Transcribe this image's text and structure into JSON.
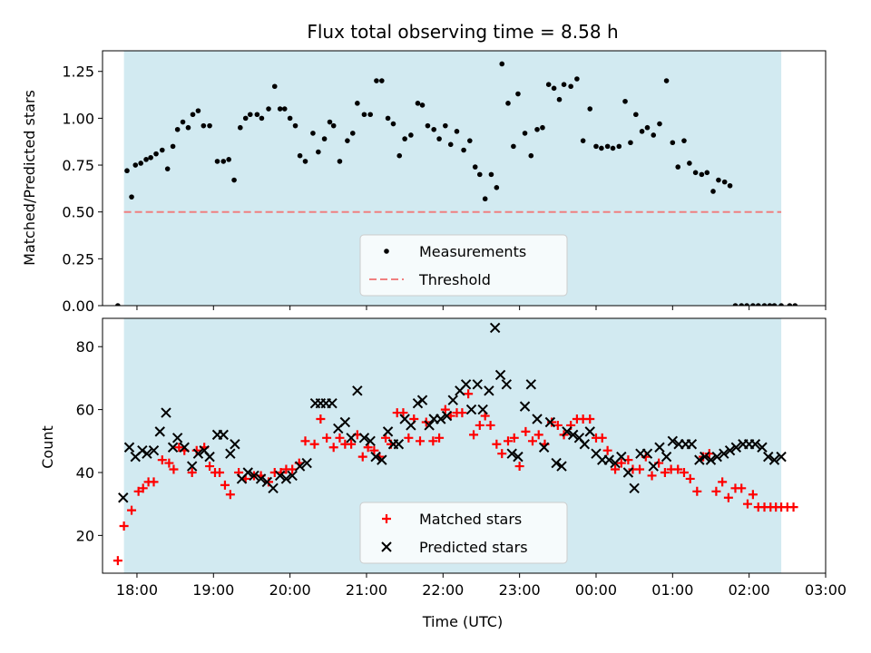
{
  "chart_data": [
    {
      "type": "scatter",
      "title": "Flux total observing time = 8.58 h",
      "ylabel": "Matched/Predicted stars",
      "xlabel": "",
      "x_range_hours": [
        17.55,
        27.0
      ],
      "ylim": [
        0.0,
        1.36
      ],
      "yticks": [
        "0.00",
        "0.25",
        "0.50",
        "0.75",
        "1.00",
        "1.25"
      ],
      "yticks_values": [
        0.0,
        0.25,
        0.5,
        0.75,
        1.0,
        1.25
      ],
      "shaded_span_hours": [
        17.83,
        26.42
      ],
      "shade_color": "#add8e6",
      "legend": {
        "placement": "lower-center",
        "entries": [
          "Measurements",
          "Threshold"
        ]
      },
      "threshold": {
        "name": "Threshold",
        "value": 0.5,
        "x_range_hours": [
          17.83,
          26.42
        ],
        "color": "#f08080",
        "style": "dashed"
      },
      "series": [
        {
          "name": "Measurements",
          "marker": "dot",
          "color": "#000000",
          "x_hours": [
            17.75,
            17.87,
            17.93,
            17.98,
            18.05,
            18.12,
            18.18,
            18.25,
            18.33,
            18.4,
            18.47,
            18.53,
            18.6,
            18.67,
            18.73,
            18.8,
            18.87,
            18.95,
            19.05,
            19.13,
            19.2,
            19.27,
            19.35,
            19.42,
            19.48,
            19.57,
            19.63,
            19.72,
            19.8,
            19.87,
            19.93,
            20.0,
            20.07,
            20.13,
            20.2,
            20.3,
            20.37,
            20.45,
            20.52,
            20.57,
            20.65,
            20.75,
            20.82,
            20.88,
            20.97,
            21.05,
            21.13,
            21.2,
            21.28,
            21.35,
            21.43,
            21.5,
            21.58,
            21.67,
            21.73,
            21.8,
            21.88,
            21.95,
            22.03,
            22.1,
            22.18,
            22.27,
            22.35,
            22.42,
            22.48,
            22.55,
            22.63,
            22.7,
            22.77,
            22.85,
            22.92,
            22.98,
            23.07,
            23.15,
            23.23,
            23.3,
            23.38,
            23.45,
            23.52,
            23.58,
            23.67,
            23.75,
            23.83,
            23.92,
            24.0,
            24.07,
            24.15,
            24.22,
            24.3,
            24.38,
            24.45,
            24.52,
            24.6,
            24.67,
            24.75,
            24.83,
            24.92,
            25.0,
            25.07,
            25.15,
            25.22,
            25.3,
            25.38,
            25.45,
            25.53,
            25.6,
            25.68,
            25.75,
            25.82,
            25.9,
            25.97,
            26.05,
            26.12,
            26.2,
            26.27,
            26.33,
            26.42,
            26.53,
            26.6
          ],
          "y": [
            0.0,
            0.72,
            0.58,
            0.75,
            0.76,
            0.78,
            0.79,
            0.81,
            0.83,
            0.73,
            0.85,
            0.94,
            0.98,
            0.95,
            1.02,
            1.04,
            0.96,
            0.96,
            0.77,
            0.77,
            0.78,
            0.67,
            0.95,
            1.0,
            1.02,
            1.02,
            1.0,
            1.05,
            1.17,
            1.05,
            1.05,
            1.0,
            0.96,
            0.8,
            0.77,
            0.92,
            0.82,
            0.89,
            0.98,
            0.96,
            0.77,
            0.88,
            0.92,
            1.08,
            1.02,
            1.02,
            1.2,
            1.2,
            1.0,
            0.97,
            0.8,
            0.89,
            0.91,
            1.08,
            1.07,
            0.96,
            0.94,
            0.89,
            0.96,
            0.86,
            0.93,
            0.83,
            0.88,
            0.74,
            0.7,
            0.57,
            0.7,
            0.63,
            1.29,
            1.08,
            0.85,
            1.13,
            0.92,
            0.8,
            0.94,
            0.95,
            1.18,
            1.16,
            1.1,
            1.18,
            1.17,
            1.21,
            0.88,
            1.05,
            0.85,
            0.84,
            0.85,
            0.84,
            0.85,
            1.09,
            0.87,
            1.02,
            0.93,
            0.95,
            0.91,
            0.97,
            1.2,
            0.87,
            0.74,
            0.88,
            0.76,
            0.71,
            0.7,
            0.71,
            0.61,
            0.67,
            0.66,
            0.64,
            0.0,
            0.0,
            0.0,
            0.0,
            0.0,
            0.0,
            0.0,
            0.0,
            0.0,
            0.0,
            0.0
          ]
        }
      ]
    },
    {
      "type": "scatter",
      "title": "",
      "ylabel": "Count",
      "xlabel": "Time (UTC)",
      "x_range_hours": [
        17.55,
        27.0
      ],
      "ylim": [
        8,
        89
      ],
      "yticks": [
        "20",
        "40",
        "60",
        "80"
      ],
      "yticks_values": [
        20,
        40,
        60,
        80
      ],
      "xticks": [
        "18:00",
        "19:00",
        "20:00",
        "21:00",
        "22:00",
        "23:00",
        "00:00",
        "01:00",
        "02:00",
        "03:00"
      ],
      "xticks_hours": [
        18,
        19,
        20,
        21,
        22,
        23,
        24,
        25,
        26,
        27
      ],
      "shaded_span_hours": [
        17.83,
        26.42
      ],
      "shade_color": "#add8e6",
      "legend": {
        "placement": "lower-center",
        "entries": [
          "Matched stars",
          "Predicted stars"
        ]
      },
      "series": [
        {
          "name": "Matched stars",
          "marker": "plus",
          "color": "#ff0000",
          "x_hours": [
            17.75,
            17.83,
            17.93,
            18.02,
            18.08,
            18.15,
            18.22,
            18.33,
            18.42,
            18.48,
            18.55,
            18.62,
            18.72,
            18.78,
            18.88,
            18.95,
            19.02,
            19.08,
            19.15,
            19.22,
            19.33,
            19.42,
            19.53,
            19.62,
            19.72,
            19.8,
            19.88,
            19.95,
            20.03,
            20.12,
            20.2,
            20.32,
            20.4,
            20.48,
            20.57,
            20.65,
            20.72,
            20.8,
            20.88,
            20.95,
            21.02,
            21.1,
            21.17,
            21.25,
            21.32,
            21.4,
            21.48,
            21.55,
            21.62,
            21.7,
            21.78,
            21.87,
            21.95,
            22.03,
            22.1,
            22.18,
            22.25,
            22.33,
            22.4,
            22.48,
            22.55,
            22.62,
            22.7,
            22.77,
            22.85,
            22.93,
            23.0,
            23.08,
            23.17,
            23.25,
            23.33,
            23.42,
            23.5,
            23.58,
            23.67,
            23.75,
            23.83,
            23.92,
            24.0,
            24.08,
            24.15,
            24.25,
            24.33,
            24.42,
            24.48,
            24.57,
            24.65,
            24.73,
            24.82,
            24.9,
            24.98,
            25.07,
            25.15,
            25.23,
            25.32,
            25.4,
            25.48,
            25.57,
            25.65,
            25.73,
            25.82,
            25.9,
            25.98,
            26.05,
            26.12,
            26.2,
            26.28,
            26.35,
            26.42,
            26.5,
            26.58
          ],
          "y": [
            12,
            23,
            28,
            34,
            35,
            37,
            37,
            44,
            43,
            41,
            48,
            47,
            40,
            47,
            48,
            42,
            40,
            40,
            36,
            33,
            40,
            38,
            39,
            39,
            37,
            40,
            40,
            41,
            41,
            43,
            50,
            49,
            57,
            51,
            48,
            51,
            49,
            49,
            52,
            45,
            48,
            47,
            45,
            51,
            49,
            59,
            59,
            51,
            57,
            50,
            56,
            50,
            51,
            60,
            58,
            59,
            59,
            65,
            52,
            55,
            58,
            55,
            49,
            46,
            50,
            51,
            42,
            53,
            50,
            52,
            49,
            56,
            55,
            52,
            55,
            57,
            57,
            57,
            51,
            51,
            47,
            41,
            43,
            44,
            41,
            41,
            45,
            39,
            43,
            40,
            41,
            41,
            40,
            38,
            34,
            45,
            46,
            34,
            37,
            32,
            35,
            35,
            30,
            33,
            29,
            29,
            29,
            29,
            29,
            29,
            29
          ]
        },
        {
          "name": "Predicted stars",
          "marker": "x",
          "color": "#000000",
          "x_hours": [
            17.82,
            17.9,
            17.98,
            18.07,
            18.13,
            18.22,
            18.3,
            18.38,
            18.47,
            18.53,
            18.62,
            18.72,
            18.8,
            18.88,
            18.95,
            19.05,
            19.13,
            19.22,
            19.28,
            19.37,
            19.45,
            19.53,
            19.62,
            19.7,
            19.78,
            19.87,
            19.95,
            20.03,
            20.13,
            20.22,
            20.33,
            20.4,
            20.47,
            20.55,
            20.63,
            20.72,
            20.8,
            20.88,
            20.97,
            21.05,
            21.12,
            21.2,
            21.28,
            21.35,
            21.42,
            21.5,
            21.58,
            21.67,
            21.73,
            21.82,
            21.88,
            21.97,
            22.05,
            22.13,
            22.22,
            22.3,
            22.37,
            22.45,
            22.52,
            22.6,
            22.68,
            22.75,
            22.83,
            22.9,
            22.98,
            23.07,
            23.15,
            23.23,
            23.32,
            23.4,
            23.48,
            23.55,
            23.62,
            23.7,
            23.78,
            23.85,
            23.92,
            24.0,
            24.08,
            24.17,
            24.25,
            24.33,
            24.42,
            24.5,
            24.58,
            24.67,
            24.75,
            24.83,
            24.92,
            25.0,
            25.08,
            25.17,
            25.25,
            25.35,
            25.42,
            25.5,
            25.58,
            25.67,
            25.75,
            25.83,
            25.92,
            26.0,
            26.08,
            26.17,
            26.25,
            26.33,
            26.42
          ],
          "y": [
            32,
            48,
            45,
            47,
            46,
            47,
            53,
            59,
            48,
            51,
            48,
            42,
            46,
            47,
            45,
            52,
            52,
            46,
            49,
            38,
            40,
            39,
            38,
            37,
            35,
            39,
            38,
            39,
            42,
            43,
            62,
            62,
            62,
            62,
            54,
            56,
            51,
            66,
            51,
            50,
            45,
            44,
            53,
            49,
            49,
            57,
            55,
            62,
            63,
            55,
            57,
            57,
            58,
            63,
            66,
            68,
            60,
            68,
            60,
            66,
            86,
            71,
            68,
            46,
            45,
            61,
            68,
            57,
            48,
            56,
            43,
            42,
            53,
            52,
            51,
            49,
            53,
            46,
            44,
            44,
            43,
            45,
            40,
            35,
            46,
            46,
            42,
            48,
            45,
            50,
            49,
            49,
            49,
            44,
            45,
            44,
            45,
            46,
            47,
            48,
            49,
            49,
            49,
            48,
            45,
            44,
            45
          ]
        }
      ]
    }
  ]
}
